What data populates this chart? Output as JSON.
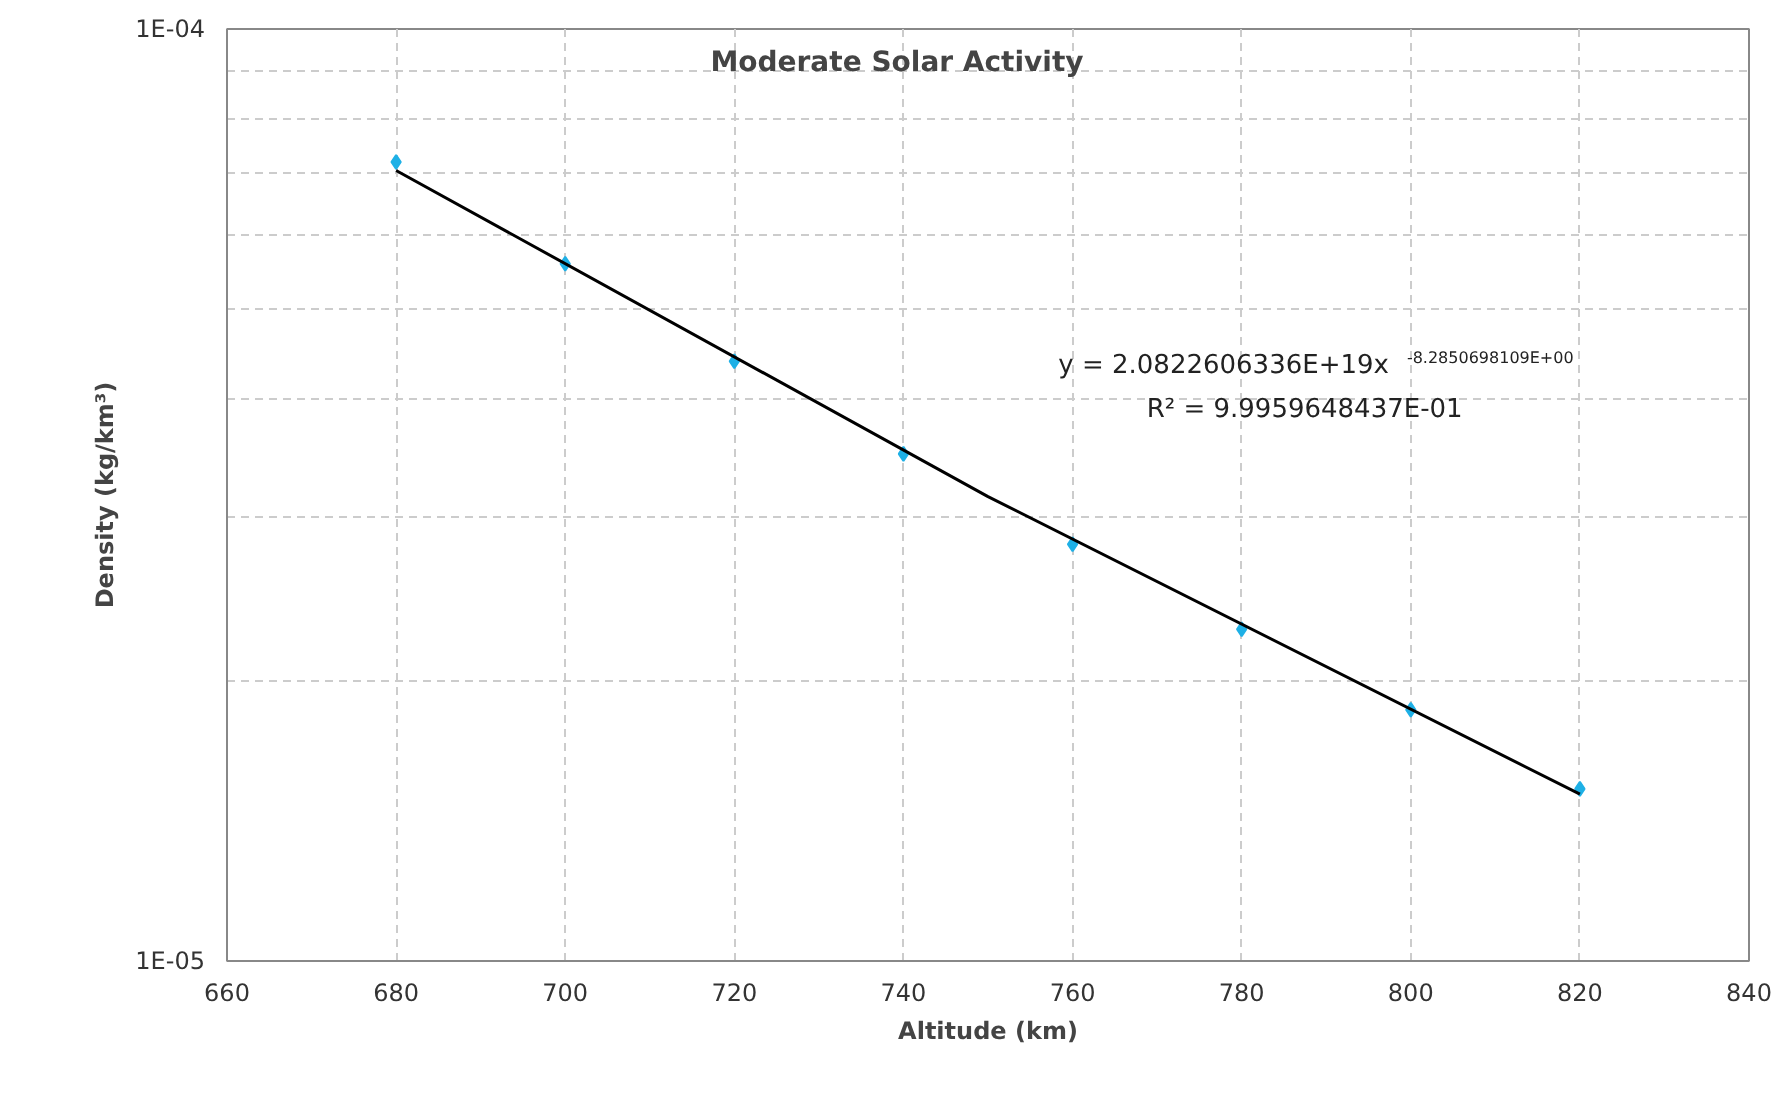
{
  "chart_data": {
    "type": "scatter",
    "title": "Moderate Solar Activity",
    "xlabel": "Altitude (km)",
    "ylabel": "Density (kg/km³)",
    "log": "y",
    "grid": true,
    "marker": "diamond",
    "xlim": [
      660,
      840
    ],
    "xticks": [
      660,
      680,
      700,
      720,
      740,
      760,
      780,
      800,
      820,
      840
    ],
    "ylim": [
      1e-05,
      0.0001
    ],
    "yticks": [
      {
        "value": 1e-05,
        "label": "1E-05"
      },
      {
        "value": 2e-05,
        "label": null
      },
      {
        "value": 3e-05,
        "label": null
      },
      {
        "value": 4e-05,
        "label": null
      },
      {
        "value": 5e-05,
        "label": null
      },
      {
        "value": 6e-05,
        "label": null
      },
      {
        "value": 7e-05,
        "label": null
      },
      {
        "value": 8e-05,
        "label": null
      },
      {
        "value": 9e-05,
        "label": null
      },
      {
        "value": 0.0001,
        "label": "1E-04"
      }
    ],
    "series": [
      {
        "color": "#1eb0e6",
        "x": [
          680,
          700,
          720,
          740,
          760,
          780,
          800,
          820
        ],
        "values": [
          7.2e-05,
          5.6e-05,
          4.4e-05,
          3.5e-05,
          2.8e-05,
          2.27e-05,
          1.86e-05,
          1.53e-05
        ]
      },
      {
        "type": "line",
        "color": "#000000",
        "marker": "none",
        "x": [
          680,
          750,
          820
        ],
        "values": [
          7.05e-05,
          3.15e-05,
          1.51e-05
        ]
      }
    ],
    "annotations": [
      "y = 2.0822606336E+19x$^{-8.2850698109E+00}$",
      "R² = 9.9959648437E-01"
    ]
  }
}
